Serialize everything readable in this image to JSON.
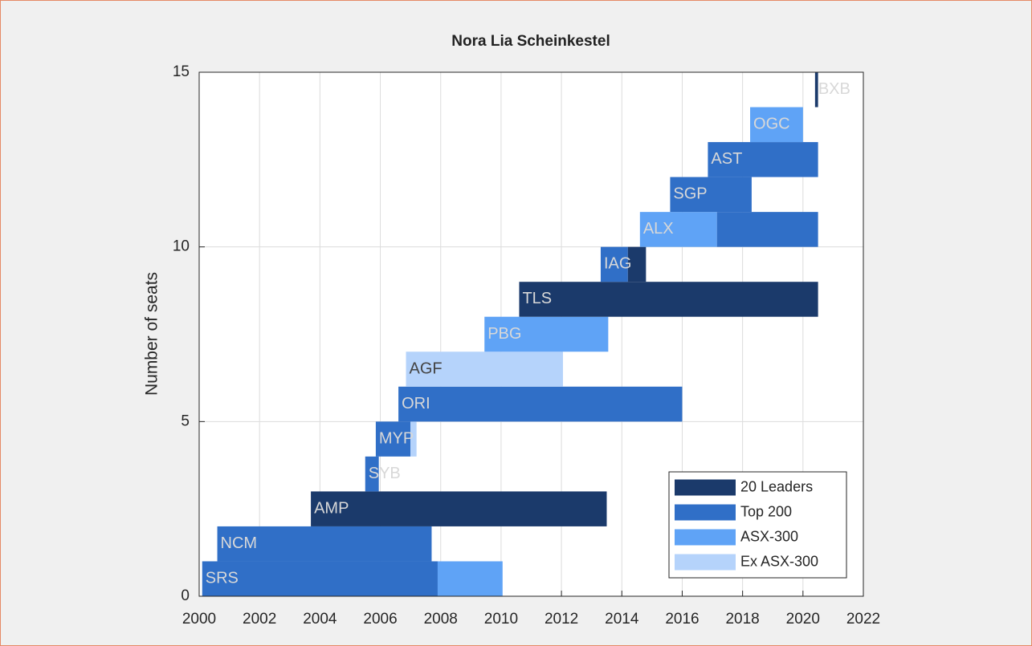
{
  "chart_data": {
    "type": "timeline",
    "title": "Nora Lia Scheinkestel",
    "ylabel": "Number of seats",
    "xlim": [
      2000,
      2022
    ],
    "xticks": [
      2000,
      2002,
      2004,
      2006,
      2008,
      2010,
      2012,
      2014,
      2016,
      2018,
      2020,
      2022
    ],
    "ylim": [
      0,
      15
    ],
    "yticks": [
      0,
      5,
      10,
      15
    ],
    "grid": true,
    "legend": "lower right",
    "series": [
      {
        "name": "20 Leaders",
        "color": "#1b3a6b"
      },
      {
        "name": "Top 200",
        "color": "#306fc7"
      },
      {
        "name": "ASX-300",
        "color": "#5fa3f6"
      },
      {
        "name": "Ex ASX-300",
        "color": "#b5d3fb"
      }
    ],
    "bars": [
      {
        "label": "SRS",
        "y": [
          0,
          1
        ],
        "segments": [
          {
            "start": 2000.1,
            "end": 2007.9,
            "series": "Top 200"
          },
          {
            "start": 2007.9,
            "end": 2010.05,
            "series": "ASX-300"
          }
        ]
      },
      {
        "label": "NCM",
        "y": [
          1,
          2
        ],
        "segments": [
          {
            "start": 2000.6,
            "end": 2007.7,
            "series": "Top 200"
          }
        ]
      },
      {
        "label": "AMP",
        "y": [
          2,
          3
        ],
        "segments": [
          {
            "start": 2003.7,
            "end": 2013.5,
            "series": "20 Leaders"
          }
        ]
      },
      {
        "label": "SYB",
        "y": [
          3,
          4
        ],
        "segments": [
          {
            "start": 2005.5,
            "end": 2005.95,
            "series": "Top 200"
          }
        ]
      },
      {
        "label": "MYP",
        "y": [
          4,
          5
        ],
        "segments": [
          {
            "start": 2005.85,
            "end": 2007.0,
            "series": "Top 200"
          },
          {
            "start": 2007.0,
            "end": 2007.2,
            "series": "Ex ASX-300"
          }
        ]
      },
      {
        "label": "ORI",
        "y": [
          5,
          6
        ],
        "segments": [
          {
            "start": 2006.6,
            "end": 2016.0,
            "series": "Top 200"
          }
        ]
      },
      {
        "label": "AGF",
        "y": [
          6,
          7
        ],
        "segments": [
          {
            "start": 2006.85,
            "end": 2012.05,
            "series": "Ex ASX-300"
          }
        ]
      },
      {
        "label": "PBG",
        "y": [
          7,
          8
        ],
        "segments": [
          {
            "start": 2009.45,
            "end": 2013.55,
            "series": "ASX-300"
          }
        ]
      },
      {
        "label": "TLS",
        "y": [
          8,
          9
        ],
        "segments": [
          {
            "start": 2010.6,
            "end": 2020.5,
            "series": "20 Leaders"
          }
        ]
      },
      {
        "label": "IAG",
        "y": [
          9,
          10
        ],
        "segments": [
          {
            "start": 2013.3,
            "end": 2014.2,
            "series": "Top 200"
          },
          {
            "start": 2014.2,
            "end": 2014.8,
            "series": "20 Leaders"
          }
        ]
      },
      {
        "label": "ALX",
        "y": [
          10,
          11
        ],
        "segments": [
          {
            "start": 2014.6,
            "end": 2017.15,
            "series": "ASX-300"
          },
          {
            "start": 2017.15,
            "end": 2020.5,
            "series": "Top 200"
          }
        ]
      },
      {
        "label": "SGP",
        "y": [
          11,
          12
        ],
        "segments": [
          {
            "start": 2015.6,
            "end": 2018.3,
            "series": "Top 200"
          }
        ]
      },
      {
        "label": "AST",
        "y": [
          12,
          13
        ],
        "segments": [
          {
            "start": 2016.85,
            "end": 2020.5,
            "series": "Top 200"
          }
        ]
      },
      {
        "label": "OGC",
        "y": [
          13,
          14
        ],
        "segments": [
          {
            "start": 2018.25,
            "end": 2020.0,
            "series": "ASX-300"
          }
        ]
      },
      {
        "label": "BXB",
        "y": [
          14,
          15
        ],
        "segments": [
          {
            "start": 2020.4,
            "end": 2020.5,
            "series": "20 Leaders"
          }
        ]
      }
    ]
  }
}
